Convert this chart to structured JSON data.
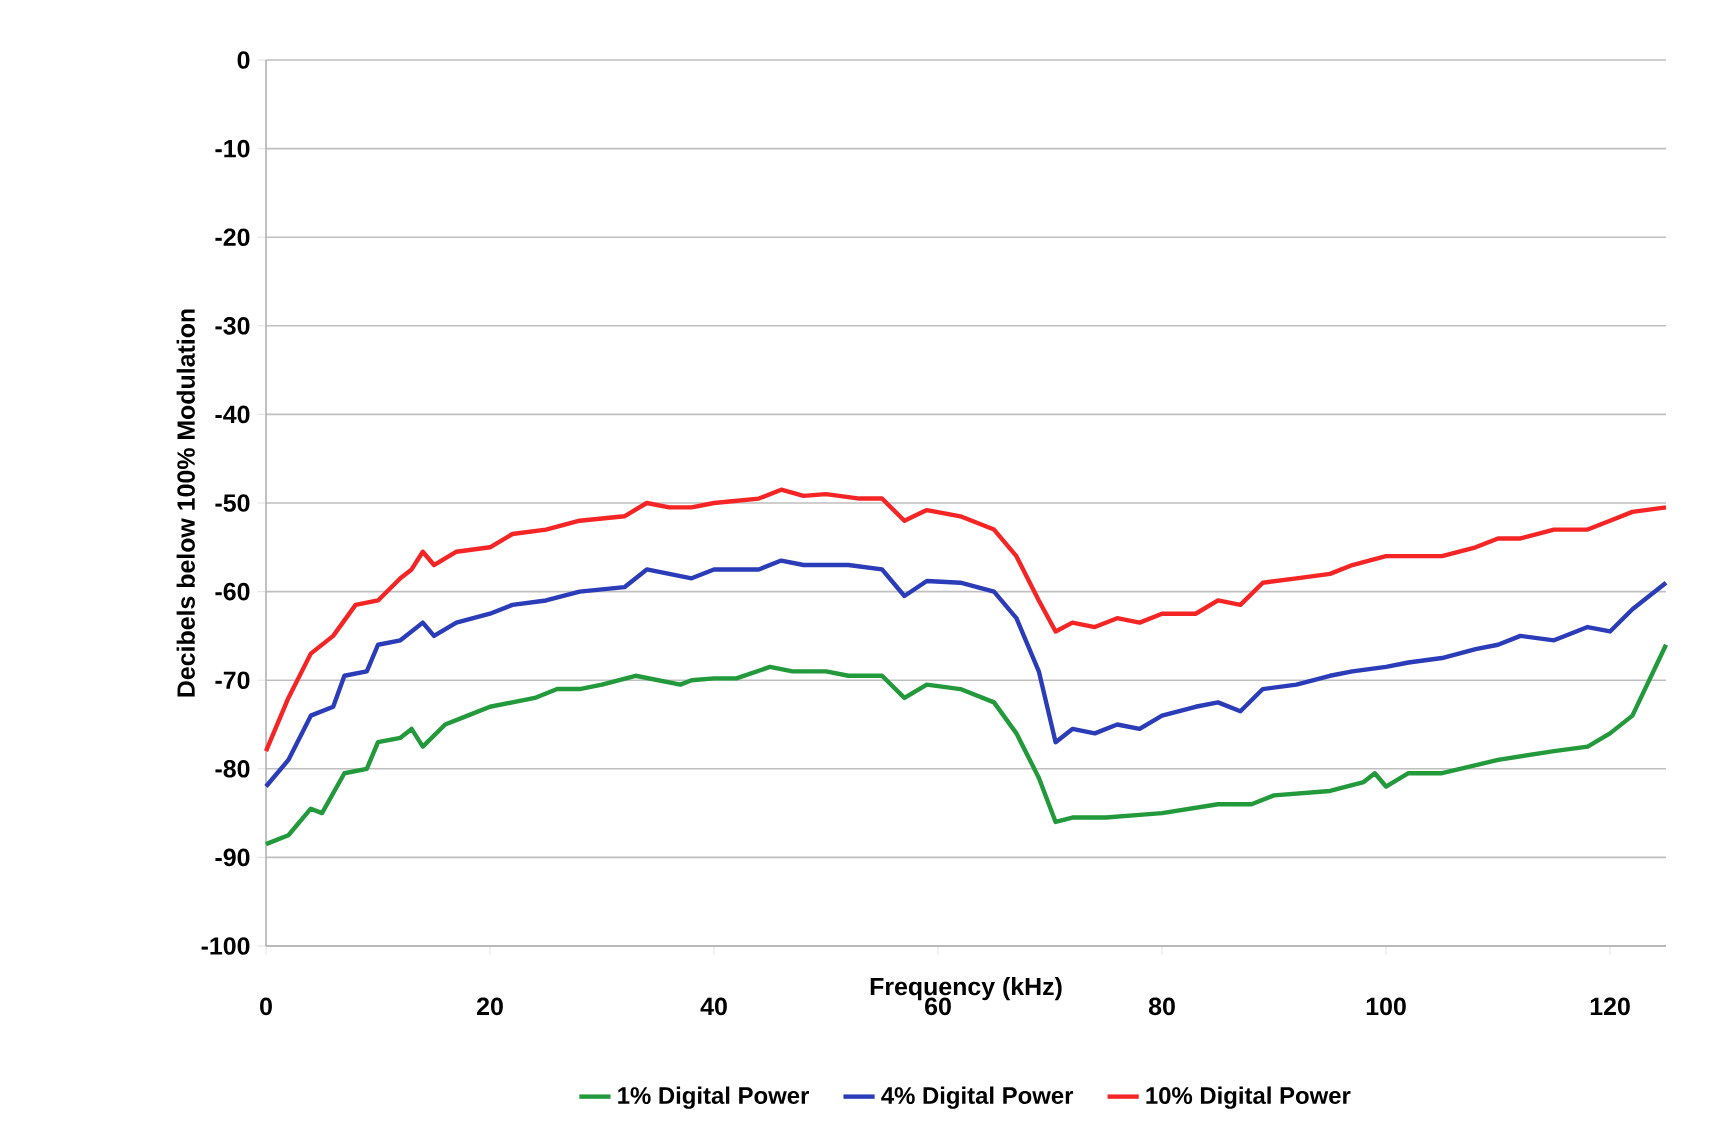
{
  "chart_data": {
    "type": "line",
    "xlabel": "Frequency (kHz)",
    "ylabel": "Decibels below 100% Modulation",
    "xlim": [
      0,
      125
    ],
    "ylim": [
      -100,
      0
    ],
    "xticks": [
      0,
      20,
      40,
      60,
      80,
      100,
      120
    ],
    "yticks": [
      -100,
      -90,
      -80,
      -70,
      -60,
      -50,
      -40,
      -30,
      -20,
      -10,
      0
    ],
    "grid": "y",
    "legend": "bottom",
    "marker": "none",
    "line_style": "solid",
    "series": [
      {
        "name": "1% Digital Power",
        "color": "#22993a",
        "x": [
          0,
          2,
          4,
          5,
          7,
          9,
          10,
          12,
          13,
          14,
          16,
          18,
          20,
          22,
          24,
          26,
          28,
          30,
          33,
          35,
          37,
          38,
          40,
          42,
          45,
          47,
          50,
          52,
          55,
          57,
          59,
          62,
          65,
          67,
          69,
          70.5,
          72,
          75,
          78,
          80,
          85,
          88,
          90,
          95,
          98,
          99,
          100,
          102,
          105,
          110,
          115,
          118,
          120,
          122,
          125
        ],
        "values": [
          -88.5,
          -87.5,
          -84.5,
          -85,
          -80.5,
          -80,
          -77,
          -76.5,
          -75.5,
          -77.5,
          -75,
          -74,
          -73,
          -72.5,
          -72,
          -71,
          -71,
          -70.5,
          -69.5,
          -70,
          -70.5,
          -70,
          -69.8,
          -69.8,
          -68.5,
          -69,
          -69,
          -69.5,
          -69.5,
          -72,
          -70.5,
          -71,
          -72.5,
          -76,
          -81,
          -86,
          -85.5,
          -85.5,
          -85.2,
          -85,
          -84,
          -84,
          -83,
          -82.5,
          -81.5,
          -80.5,
          -82,
          -80.5,
          -80.5,
          -79,
          -78,
          -77.5,
          -76,
          -74,
          -66
        ]
      },
      {
        "name": "4% Digital Power",
        "color": "#2a3cb8",
        "x": [
          0,
          2,
          4,
          6,
          7,
          9,
          10,
          12,
          14,
          15,
          17,
          20,
          22,
          25,
          28,
          32,
          34,
          36,
          38,
          40,
          44,
          46,
          48,
          50,
          52,
          55,
          57,
          59,
          62,
          65,
          67,
          69,
          70.5,
          72,
          74,
          76,
          78,
          80,
          83,
          85,
          87,
          89,
          92,
          95,
          97,
          100,
          102,
          105,
          108,
          110,
          112,
          115,
          118,
          120,
          122,
          125
        ],
        "values": [
          -82,
          -79,
          -74,
          -73,
          -69.5,
          -69,
          -66,
          -65.5,
          -63.5,
          -65,
          -63.5,
          -62.5,
          -61.5,
          -61,
          -60,
          -59.5,
          -57.5,
          -58,
          -58.5,
          -57.5,
          -57.5,
          -56.5,
          -57,
          -57,
          -57,
          -57.5,
          -60.5,
          -58.8,
          -59,
          -60,
          -63,
          -69,
          -77,
          -75.5,
          -76,
          -75,
          -75.5,
          -74,
          -73,
          -72.5,
          -73.5,
          -71,
          -70.5,
          -69.5,
          -69,
          -68.5,
          -68,
          -67.5,
          -66.5,
          -66,
          -65,
          -65.5,
          -64,
          -64.5,
          -62,
          -59
        ]
      },
      {
        "name": "10% Digital Power",
        "color": "#f52525",
        "x": [
          0,
          2,
          4,
          6,
          8,
          10,
          12,
          13,
          14,
          15,
          17,
          20,
          22,
          25,
          28,
          32,
          34,
          36,
          38,
          40,
          44,
          46,
          48,
          50,
          53,
          55,
          57,
          59,
          62,
          65,
          67,
          69,
          70.5,
          72,
          74,
          76,
          78,
          80,
          83,
          85,
          87,
          89,
          92,
          95,
          97,
          100,
          102,
          105,
          108,
          110,
          112,
          115,
          118,
          120,
          122,
          125
        ],
        "values": [
          -78,
          -72,
          -67,
          -65,
          -61.5,
          -61,
          -58.5,
          -57.5,
          -55.5,
          -57,
          -55.5,
          -55,
          -53.5,
          -53,
          -52,
          -51.5,
          -50,
          -50.5,
          -50.5,
          -50,
          -49.5,
          -48.5,
          -49.2,
          -49,
          -49.5,
          -49.5,
          -52,
          -50.8,
          -51.5,
          -53,
          -56,
          -61,
          -64.5,
          -63.5,
          -64,
          -63,
          -63.5,
          -62.5,
          -62.5,
          -61,
          -61.5,
          -59,
          -58.5,
          -58,
          -57,
          -56,
          -56,
          -56,
          -55,
          -54,
          -54,
          -53,
          -53,
          -52,
          -51,
          -50.5
        ]
      }
    ]
  }
}
